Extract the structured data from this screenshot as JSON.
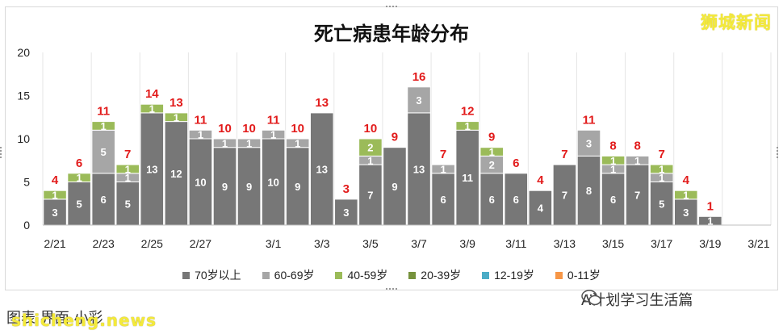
{
  "chart_data": {
    "type": "bar",
    "stacked": true,
    "title": "死亡病患年龄分布",
    "categories": [
      "2/21",
      "2/22",
      "2/23",
      "2/24",
      "2/25",
      "2/26",
      "2/27",
      "2/28",
      "2/29",
      "3/1",
      "3/2",
      "3/3",
      "3/4",
      "3/5",
      "3/6",
      "3/7",
      "3/8",
      "3/9",
      "3/10",
      "3/11",
      "3/12",
      "3/13",
      "3/14",
      "3/15",
      "3/16",
      "3/17",
      "3/18",
      "3/19",
      "3/20",
      "3/21"
    ],
    "x_tick_labels": [
      "2/21",
      "2/23",
      "2/25",
      "2/27",
      "3/1",
      "3/3",
      "3/5",
      "3/7",
      "3/9",
      "3/11",
      "3/13",
      "3/15",
      "3/17",
      "3/19",
      "3/21"
    ],
    "y_ticks": [
      "0",
      "5",
      "10",
      "15",
      "20"
    ],
    "ylim": [
      0,
      20
    ],
    "series": [
      {
        "name": "70岁以上",
        "color": "#777777",
        "values": [
          3,
          5,
          6,
          5,
          13,
          12,
          10,
          9,
          9,
          10,
          9,
          13,
          3,
          7,
          9,
          13,
          6,
          11,
          6,
          6,
          4,
          7,
          8,
          6,
          7,
          5,
          3,
          1,
          0,
          0
        ]
      },
      {
        "name": "60-69岁",
        "color": "#a6a6a6",
        "values": [
          0,
          0,
          5,
          1,
          0,
          0,
          1,
          1,
          1,
          1,
          1,
          0,
          0,
          1,
          0,
          3,
          1,
          0,
          2,
          0,
          0,
          0,
          3,
          1,
          1,
          1,
          0,
          0,
          0,
          0
        ]
      },
      {
        "name": "40-59岁",
        "color": "#9bbb59",
        "values": [
          1,
          1,
          1,
          1,
          1,
          1,
          0,
          0,
          0,
          0,
          0,
          0,
          0,
          2,
          0,
          0,
          0,
          1,
          1,
          0,
          0,
          0,
          0,
          1,
          0,
          1,
          1,
          0,
          0,
          0
        ]
      },
      {
        "name": "20-39岁",
        "color": "#76923c",
        "values": [
          0,
          0,
          0,
          0,
          0,
          0,
          0,
          0,
          0,
          0,
          0,
          0,
          0,
          0,
          0,
          0,
          0,
          0,
          0,
          0,
          0,
          0,
          0,
          0,
          0,
          0,
          0,
          0,
          0,
          0
        ]
      },
      {
        "name": "12-19岁",
        "color": "#4bacc6",
        "values": [
          0,
          0,
          0,
          0,
          0,
          0,
          0,
          0,
          0,
          0,
          0,
          0,
          0,
          0,
          0,
          0,
          0,
          0,
          0,
          0,
          0,
          0,
          0,
          0,
          0,
          0,
          0,
          0,
          0,
          0
        ]
      },
      {
        "name": "0-11岁",
        "color": "#f79646",
        "values": [
          0,
          0,
          0,
          0,
          0,
          0,
          0,
          0,
          0,
          0,
          0,
          0,
          0,
          0,
          0,
          0,
          0,
          0,
          0,
          0,
          0,
          0,
          0,
          0,
          0,
          0,
          0,
          0,
          0,
          0
        ]
      }
    ],
    "totals": [
      4,
      6,
      11,
      7,
      14,
      13,
      11,
      10,
      10,
      11,
      10,
      13,
      3,
      10,
      9,
      16,
      7,
      12,
      9,
      6,
      4,
      7,
      11,
      8,
      8,
      7,
      4,
      1,
      "",
      ""
    ],
    "total_label_color": "#e21b1b",
    "legend_position": "bottom",
    "grid": "vertical"
  },
  "header": {
    "logo_text": "狮城新闻"
  },
  "footer": {
    "left_text": "图表  界面  小彩",
    "watermark": "shicheng.news",
    "wechat_text": "A计划学习生活篇"
  }
}
